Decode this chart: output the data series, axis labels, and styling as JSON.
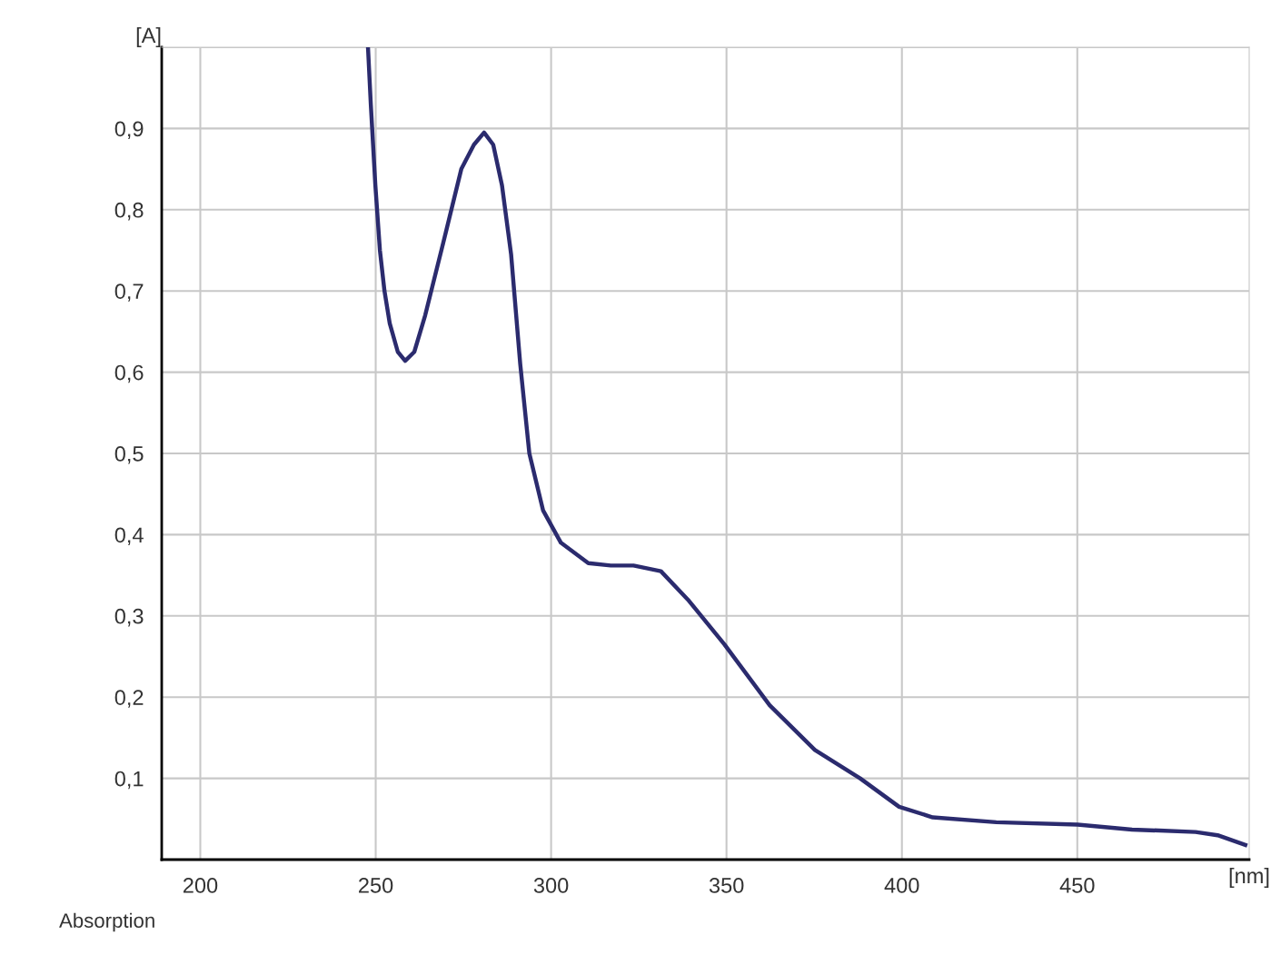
{
  "chart_data": {
    "type": "line",
    "xlabel": "[nm]",
    "ylabel": "[A]",
    "annotations": [
      "Absorption"
    ],
    "x": [
      247.8,
      248.6,
      249.9,
      251.2,
      252.5,
      254.0,
      256.3,
      258.4,
      261.0,
      264.1,
      269.3,
      274.4,
      278.0,
      280.9,
      283.5,
      286.0,
      288.6,
      291.2,
      293.8,
      297.7,
      302.8,
      310.6,
      317.0,
      323.5,
      331.3,
      339.0,
      349.4,
      362.3,
      375.2,
      388.1,
      399.2,
      408.8,
      426.9,
      450.1,
      465.6,
      483.7,
      490.0,
      497.9
    ],
    "series": [
      {
        "color": "#2b2b6e",
        "values": [
          1.0,
          0.93,
          0.83,
          0.75,
          0.7,
          0.66,
          0.625,
          0.614,
          0.625,
          0.67,
          0.76,
          0.85,
          0.88,
          0.895,
          0.88,
          0.83,
          0.745,
          0.61,
          0.5,
          0.43,
          0.39,
          0.365,
          0.362,
          0.362,
          0.355,
          0.32,
          0.265,
          0.19,
          0.135,
          0.1,
          0.065,
          0.052,
          0.046,
          0.043,
          0.037,
          0.034,
          0.03,
          0.018
        ]
      }
    ],
    "xlim": [
      189,
      499
    ],
    "ylim": [
      0,
      1.0
    ],
    "xticks": [
      200,
      250,
      300,
      350,
      400,
      450
    ],
    "yticks": [
      {
        "value": 0.1,
        "label": "0,1"
      },
      {
        "value": 0.2,
        "label": "0,2"
      },
      {
        "value": 0.3,
        "label": "0,3"
      },
      {
        "value": 0.4,
        "label": "0,4"
      },
      {
        "value": 0.5,
        "label": "0,5"
      },
      {
        "value": 0.6,
        "label": "0,6"
      },
      {
        "value": 0.7,
        "label": "0,7"
      },
      {
        "value": 0.8,
        "label": "0,8"
      },
      {
        "value": 0.9,
        "label": "0,9"
      },
      {
        "value": 1.0,
        "label": null
      }
    ],
    "grid": true,
    "legend": false,
    "marker": "none",
    "line_style": "solid"
  }
}
